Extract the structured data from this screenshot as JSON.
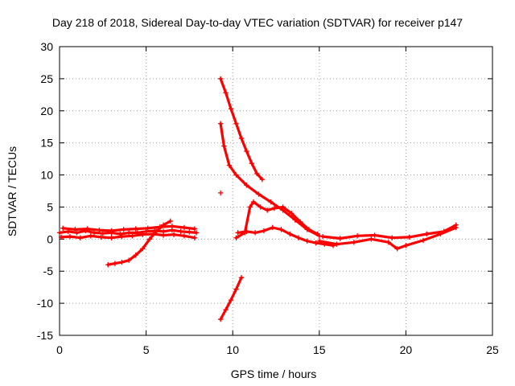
{
  "chart_data": {
    "type": "scatter",
    "title": "Day 218 of 2018, Sidereal Day-to-day VTEC variation (SDTVAR) for receiver p147",
    "xlabel": "GPS time / hours",
    "ylabel": "SDTVAR / TECUs",
    "xlim": [
      0,
      25
    ],
    "ylim": [
      -15,
      30
    ],
    "xticks": [
      "0",
      "5",
      "10",
      "15",
      "20",
      "25"
    ],
    "yticks": [
      "-15",
      "-10",
      "-5",
      "0",
      "5",
      "10",
      "15",
      "20",
      "25",
      "30"
    ],
    "grid": true,
    "marker": "+",
    "color": "#ff0000",
    "series": [
      {
        "name": "main-band",
        "x": [
          0.0,
          0.5,
          1.0,
          1.5,
          2.0,
          2.5,
          3.0,
          3.5,
          4.0,
          4.5,
          5.0,
          5.5,
          6.0,
          6.5,
          7.0,
          7.5,
          7.9
        ],
        "y": [
          1.0,
          1.2,
          1.0,
          1.3,
          1.0,
          0.9,
          1.0,
          0.8,
          1.0,
          1.0,
          1.2,
          1.3,
          1.2,
          1.4,
          1.2,
          1.1,
          1.0
        ]
      },
      {
        "name": "main-band-low",
        "x": [
          0.1,
          0.6,
          1.2,
          1.8,
          2.4,
          3.0,
          3.6,
          4.2,
          4.8,
          5.4,
          6.0,
          6.6,
          7.2,
          7.8
        ],
        "y": [
          0.3,
          0.4,
          0.2,
          0.5,
          0.3,
          0.2,
          0.4,
          0.5,
          0.7,
          0.8,
          0.6,
          0.7,
          0.5,
          0.2
        ]
      },
      {
        "name": "main-band-high",
        "x": [
          0.2,
          0.9,
          1.6,
          2.3,
          3.0,
          3.7,
          4.4,
          5.1,
          5.8,
          6.5,
          7.2,
          7.8
        ],
        "y": [
          1.7,
          1.5,
          1.6,
          1.4,
          1.3,
          1.5,
          1.6,
          1.7,
          1.9,
          2.0,
          1.8,
          1.6
        ]
      },
      {
        "name": "rising-arc",
        "x": [
          2.8,
          3.2,
          3.6,
          4.0,
          4.4,
          4.8,
          5.2,
          5.6,
          6.0,
          6.4
        ],
        "y": [
          -4.0,
          -3.8,
          -3.6,
          -3.3,
          -2.5,
          -1.5,
          0.0,
          1.2,
          2.2,
          2.8
        ]
      },
      {
        "name": "upper-descent",
        "x": [
          9.3,
          9.6,
          9.9,
          10.2,
          10.5,
          10.8,
          11.1,
          11.4,
          11.7
        ],
        "y": [
          25.0,
          22.8,
          20.3,
          18.0,
          15.7,
          13.7,
          11.8,
          10.2,
          9.3
        ]
      },
      {
        "name": "second-descent",
        "x": [
          9.3,
          9.5,
          9.8,
          10.2,
          10.8,
          11.5,
          12.2,
          12.9,
          13.6,
          14.3,
          15.0
        ],
        "y": [
          18.0,
          14.5,
          11.5,
          10.0,
          8.4,
          7.0,
          5.8,
          4.5,
          3.0,
          1.5,
          0.5
        ]
      },
      {
        "name": "isolated-point",
        "x": [
          9.3
        ],
        "y": [
          7.2
        ]
      },
      {
        "name": "lower-rise",
        "x": [
          9.3,
          9.6,
          9.9,
          10.2,
          10.5
        ],
        "y": [
          -12.5,
          -11.0,
          -9.5,
          -7.8,
          -6.0
        ]
      },
      {
        "name": "middle-loop",
        "x": [
          10.2,
          10.7,
          11.0,
          11.2,
          11.6,
          12.0,
          12.4,
          12.9,
          13.4,
          13.9,
          14.4,
          14.9
        ],
        "y": [
          0.2,
          1.0,
          5.0,
          5.8,
          5.0,
          4.5,
          4.8,
          5.0,
          4.0,
          2.7,
          1.5,
          0.8
        ]
      },
      {
        "name": "middle-band",
        "x": [
          10.3,
          10.8,
          11.3,
          11.8,
          12.3,
          12.8,
          13.3,
          13.8,
          14.3,
          14.8,
          15.3,
          15.8
        ],
        "y": [
          1.0,
          1.2,
          1.0,
          1.3,
          1.8,
          1.5,
          0.8,
          0.2,
          -0.3,
          -0.6,
          -0.8,
          -1.0
        ]
      },
      {
        "name": "late-band",
        "x": [
          15.0,
          16.0,
          17.0,
          18.0,
          19.0,
          19.5,
          20.0,
          21.0,
          22.0,
          22.9
        ],
        "y": [
          -0.3,
          -0.8,
          -0.5,
          0.0,
          -0.5,
          -1.5,
          -1.0,
          -0.2,
          0.8,
          1.8
        ]
      },
      {
        "name": "late-band-upper",
        "x": [
          15.2,
          16.2,
          17.2,
          18.2,
          19.2,
          20.2,
          21.2,
          22.2,
          22.9
        ],
        "y": [
          0.4,
          0.1,
          0.5,
          0.6,
          0.2,
          0.3,
          0.8,
          1.2,
          2.2
        ]
      }
    ]
  }
}
